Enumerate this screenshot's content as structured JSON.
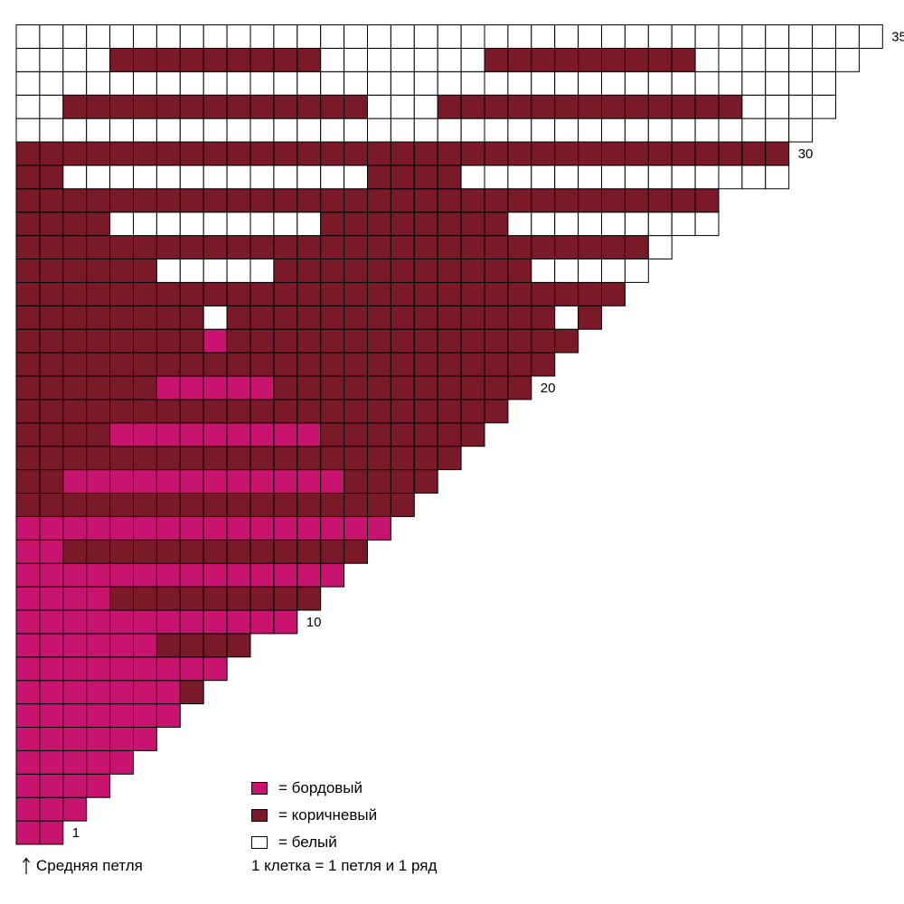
{
  "palette": {
    "bordo": "#c8146e",
    "brown": "#7a1a28",
    "white": "#ffffff"
  },
  "chart_data": {
    "type": "grid",
    "rows": 35,
    "start_cells": 2,
    "codes": {
      "P": "бордовый",
      "B": "коричневый",
      "W": "белый"
    },
    "rows_pattern": [
      "PP",
      "PPP",
      "PPPP",
      "PPPPP",
      "PPPPPP",
      "PPPPPPP",
      "PPPPPPPB",
      "PPPPPPPPP",
      "PPPPPPBBBB",
      "PPPPPPPPPPPP",
      "PPPPBBBBBBBBB",
      "PPPPPPPPPPPPPP",
      "PPBBBBBBBBBBBBB",
      "PPPPPPPPPPPPPPPP",
      "BBBBBBBBBBBBBBBBB",
      "BBPPPPPPPPPPPPBBBB",
      "BBBBBBBBBBBBBBBBBBB",
      "BBBBPPPPPPPPPBBBBBBB",
      "BBBBBBBBBBBBBBBBBBBBB",
      "BBBBBBPPPPPBBBBBBBBBBB",
      "BBBBBBBBBBBBBBBBBBBBBBB",
      "BBBBBBBBPBBBBBBBBBBBBBBB",
      "BBBBBBBBWBBBBBBBBBBBBBBWB",
      "BBBBBBBBBBBBBBBBBBBBBBBBBB",
      "BBBBBBWWWWWBBBBBBBBBBBWWWWW",
      "BBBBBBBBBBBBBBBBBBBBBBBBBBBW",
      "BBBBWWWWWWWWWBBBBBBBBWWWWWWWWW",
      "BBBBBBBBBBBBBBBBBBBBBBBBBBBBBB",
      "BBWWWWWWWWWWWWWBBBBWWWWWWWWWWWWWW",
      "BBBBBBBBBBBBBBBBBBBBBBBBBBBBBBBBB",
      "WWWWWWWWWWWWWWWWWWWWWWWWWWWWWWWWWW",
      "WWBBBBBBBBBBBBBWWWBBBBBBBBBBBBBWWWW",
      "WWWWWWWWWWWWWWWWWWWWWWWWWWWWWWWWWWW",
      "WWWWBBBBBBBBBWWWWWWWBBBBBBBBBWWWWWWW",
      "WWWWWWWWWWWWWWWWWWWWWWWWWWWWWWWWWWWWW"
    ],
    "row_labels": [
      {
        "row": 1,
        "text": "1"
      },
      {
        "row": 10,
        "text": "10"
      },
      {
        "row": 20,
        "text": "20"
      },
      {
        "row": 30,
        "text": "30"
      },
      {
        "row": 35,
        "text": "35"
      }
    ]
  },
  "legend": {
    "items": [
      {
        "key": "P",
        "label": "= бордовый"
      },
      {
        "key": "B",
        "label": "= коричневый"
      },
      {
        "key": "W",
        "label": "= белый"
      }
    ],
    "note": "1 клетка = 1 петля и 1 ряд"
  },
  "middle_stitch": {
    "icon": "arrow-up-icon",
    "label": "Средняя петля"
  }
}
